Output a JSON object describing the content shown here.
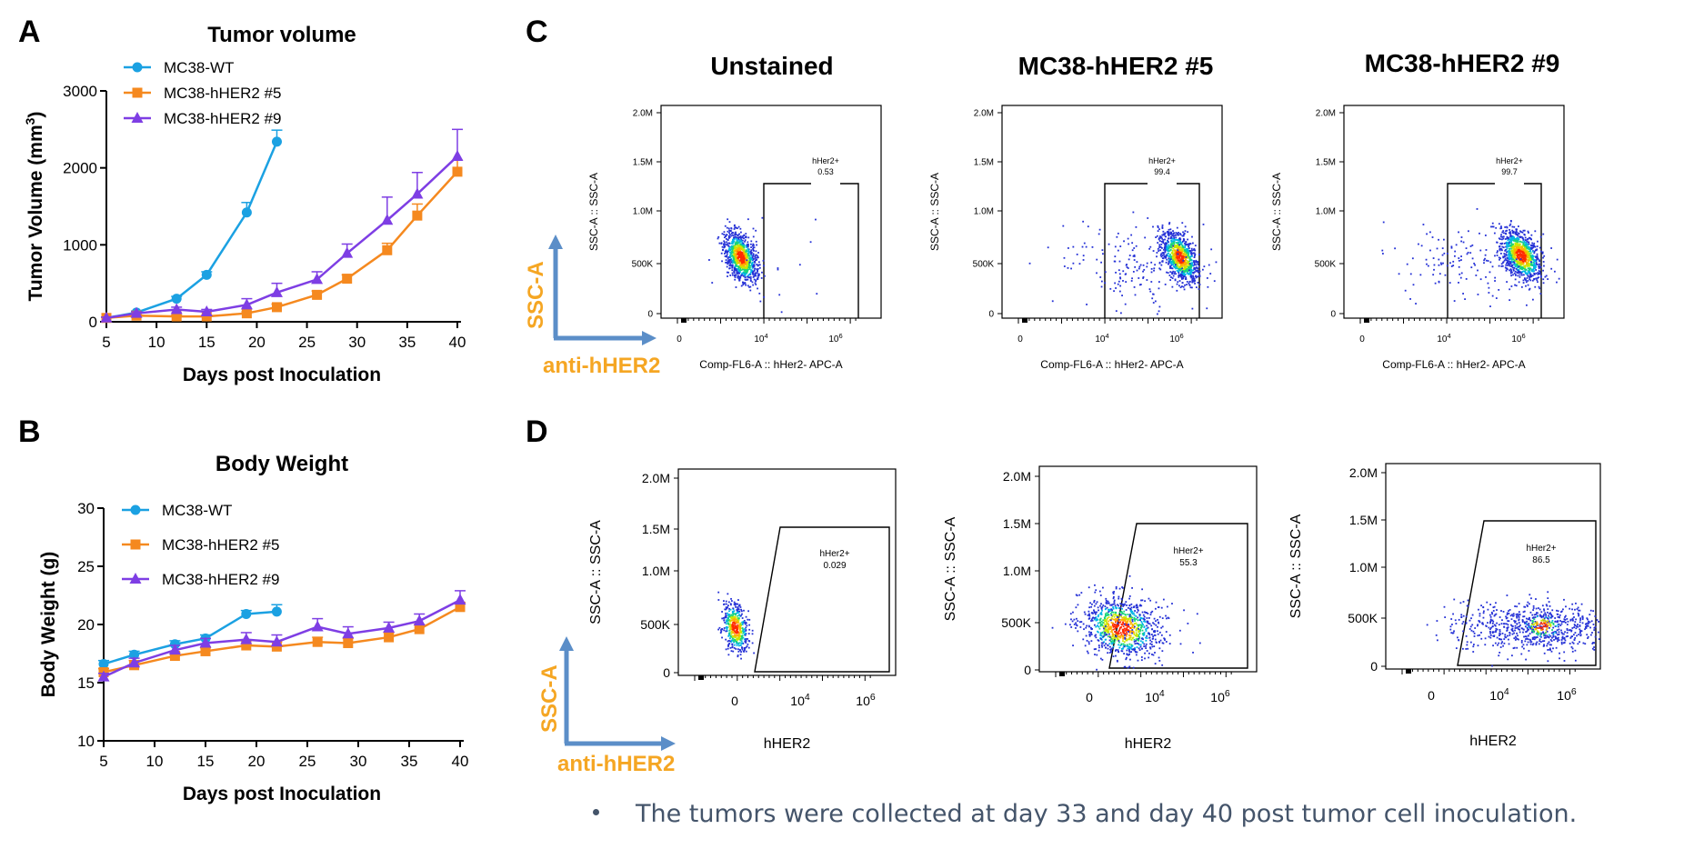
{
  "panels": {
    "a": "A",
    "b": "B",
    "c": "C",
    "d": "D"
  },
  "colors": {
    "wt": "#1ba1e2",
    "h5": "#f5891f",
    "h9": "#7e3ee4",
    "axis_hint": "#5b8ec8",
    "hint_text": "#f5a623"
  },
  "chart_data": [
    {
      "type": "line",
      "id": "A",
      "title": "Tumor volume",
      "xlabel": "Days post Inoculation",
      "ylabel": "Tumor Volume (mm",
      "ylabel_sup": "3",
      "ylabel_end": ")",
      "xlim": [
        5,
        40
      ],
      "ylim": [
        0,
        3000
      ],
      "xticks": [
        5,
        10,
        15,
        20,
        25,
        30,
        35,
        40
      ],
      "yticks": [
        0,
        1000,
        2000,
        3000
      ],
      "legend": "top-left",
      "series": [
        {
          "name": "MC38-WT",
          "marker": "circle",
          "x": [
            5,
            8,
            12,
            15,
            19,
            22
          ],
          "y": [
            50,
            120,
            300,
            610,
            1420,
            2340
          ],
          "err": [
            10,
            20,
            30,
            40,
            130,
            150
          ]
        },
        {
          "name": "MC38-hHER2 #5",
          "marker": "square",
          "x": [
            5,
            8,
            12,
            15,
            19,
            22,
            26,
            29,
            33,
            36,
            40
          ],
          "y": [
            50,
            80,
            70,
            70,
            110,
            190,
            350,
            560,
            930,
            1380,
            1950
          ],
          "err": [
            10,
            10,
            15,
            15,
            20,
            40,
            50,
            50,
            90,
            150,
            150
          ]
        },
        {
          "name": "MC38-hHER2 #9",
          "marker": "triangle",
          "x": [
            5,
            8,
            12,
            15,
            19,
            22,
            26,
            29,
            33,
            36,
            40
          ],
          "y": [
            50,
            110,
            160,
            130,
            220,
            380,
            550,
            890,
            1320,
            1660,
            2150
          ],
          "err": [
            10,
            20,
            30,
            30,
            80,
            120,
            100,
            120,
            300,
            280,
            350
          ]
        }
      ]
    },
    {
      "type": "line",
      "id": "B",
      "title": "Body Weight",
      "xlabel": "Days post Inoculation",
      "ylabel": "Body Weight (g)",
      "xlim": [
        5,
        40
      ],
      "ylim": [
        10,
        30
      ],
      "xticks": [
        5,
        10,
        15,
        20,
        25,
        30,
        35,
        40
      ],
      "yticks": [
        10,
        15,
        20,
        25,
        30
      ],
      "legend": "top-left",
      "series": [
        {
          "name": "MC38-WT",
          "marker": "circle",
          "x": [
            5,
            8,
            12,
            15,
            19,
            22
          ],
          "y": [
            16.6,
            17.4,
            18.3,
            18.8,
            20.9,
            21.1
          ],
          "err": [
            0.3,
            0.3,
            0.3,
            0.3,
            0.3,
            0.6
          ]
        },
        {
          "name": "MC38-hHER2 #5",
          "marker": "square",
          "x": [
            5,
            8,
            12,
            15,
            19,
            22,
            26,
            29,
            33,
            36,
            40
          ],
          "y": [
            15.9,
            16.5,
            17.3,
            17.7,
            18.2,
            18.1,
            18.5,
            18.4,
            18.9,
            19.6,
            21.5
          ],
          "err": [
            0.3,
            0.4,
            0.3,
            0.3,
            0.4,
            0.4,
            0.4,
            0.4,
            0.4,
            0.4,
            0.4
          ]
        },
        {
          "name": "MC38-hHER2 #9",
          "marker": "triangle",
          "x": [
            5,
            8,
            12,
            15,
            19,
            22,
            26,
            29,
            33,
            36,
            40
          ],
          "y": [
            15.5,
            16.7,
            17.8,
            18.4,
            18.7,
            18.5,
            19.8,
            19.2,
            19.7,
            20.3,
            22.1
          ],
          "err": [
            0.3,
            0.4,
            0.4,
            0.4,
            0.6,
            0.6,
            0.7,
            0.6,
            0.5,
            0.6,
            0.8
          ]
        }
      ]
    }
  ],
  "flow": {
    "axis_hint": {
      "y": "SSC-A",
      "x": "anti-hHER2"
    },
    "row_c": {
      "headers": [
        "Unstained",
        "MC38-hHER2 #5",
        "MC38-hHER2 #9"
      ],
      "y_label": "SSC-A :: SSC-A",
      "x_label": "Comp-FL6-A :: hHer2- APC-A",
      "yticks": [
        "2.0M",
        "1.5M",
        "1.0M",
        "500K",
        "0"
      ],
      "xticks": {
        "a": "0",
        "b": "10",
        "b_exp": "4",
        "c": "10",
        "c_exp": "6"
      },
      "gate_name": "hHer2+",
      "gate_values": [
        "0.53",
        "99.4",
        "99.7"
      ]
    },
    "row_d": {
      "y_label": "SSC-A :: SSC-A",
      "x_label": "hHER2",
      "yticks": [
        "2.0M",
        "1.5M",
        "1.0M",
        "500K",
        "0"
      ],
      "xticks": {
        "a": "0",
        "b": "10",
        "b_exp": "4",
        "c": "10",
        "c_exp": "6"
      },
      "gate_name": "hHer2+",
      "gate_values": [
        "0.029",
        "55.3",
        "86.5"
      ]
    }
  },
  "note": "The tumors were collected at day 33 and day 40 post tumor cell inoculation."
}
